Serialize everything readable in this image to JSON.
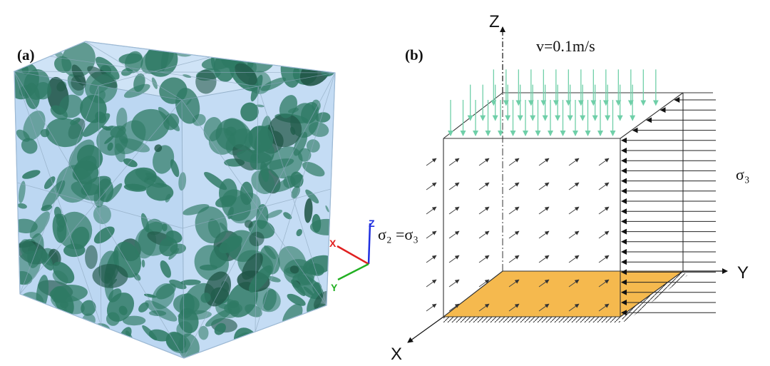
{
  "panel_a": {
    "label": "(a)",
    "triad": {
      "x_label": "X",
      "y_label": "Y",
      "z_label": "Z",
      "x_color": "#e02020",
      "y_color": "#22b022",
      "z_color": "#2030e0"
    }
  },
  "panel_b": {
    "label": "(b)",
    "velocity_label": "v=0.1m/s",
    "side_stress_label": "σ₂ =σ₃",
    "right_stress_label": "σ₃",
    "axis_x": "X",
    "axis_y": "Y",
    "axis_z": "Z"
  },
  "colors": {
    "box_fill": "#bcd7f2",
    "fracture": "#2e7a64",
    "fracture_dark": "#1f5546",
    "load_arrow": "#7fd8b6",
    "base_fill": "#f5b94e"
  }
}
